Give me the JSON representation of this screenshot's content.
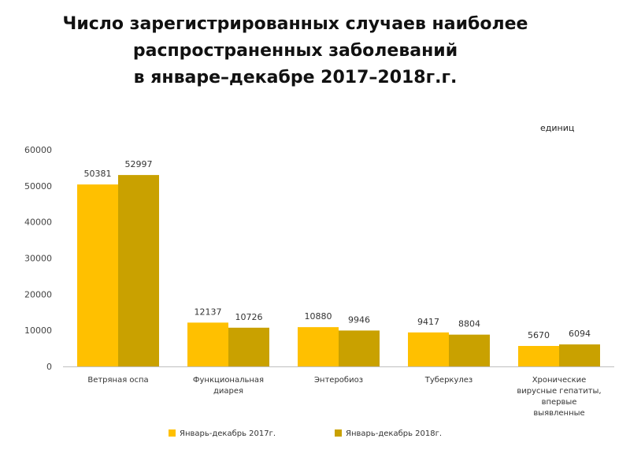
{
  "title_lines": [
    "Число зарегистрированных  случаев  наиболее",
    "распространенных  заболеваний",
    "в январе–декабре 2017–2018г.г."
  ],
  "unit": "единиц",
  "colors": {
    "series_2017": "#FFC000",
    "series_2018": "#C9A100",
    "axis": "#BFBFBF"
  },
  "chart_data": {
    "type": "bar",
    "title": "Число зарегистрированных  случаев  наиболее распространенных  заболеваний в январе–декабре 2017–2018г.г.",
    "categories": [
      [
        "Ветряная оспа"
      ],
      [
        "Функциональная",
        "диарея"
      ],
      [
        "Энтеробиоз"
      ],
      [
        "Туберкулез"
      ],
      [
        "Хронические",
        "вирусные гепатиты,",
        "впервые",
        "выявленные"
      ]
    ],
    "series": [
      {
        "name": "Январь-декабрь 2017г.",
        "values": [
          50381,
          12137,
          10880,
          9417,
          5670
        ]
      },
      {
        "name": "Январь-декабрь 2018г.",
        "values": [
          52997,
          10726,
          9946,
          8804,
          6094
        ]
      }
    ],
    "ylim": [
      0,
      60000
    ],
    "yticks": [
      0,
      10000,
      20000,
      30000,
      40000,
      50000,
      60000
    ],
    "ylabel": "",
    "xlabel": "",
    "grid": false,
    "legend": "bottom"
  }
}
